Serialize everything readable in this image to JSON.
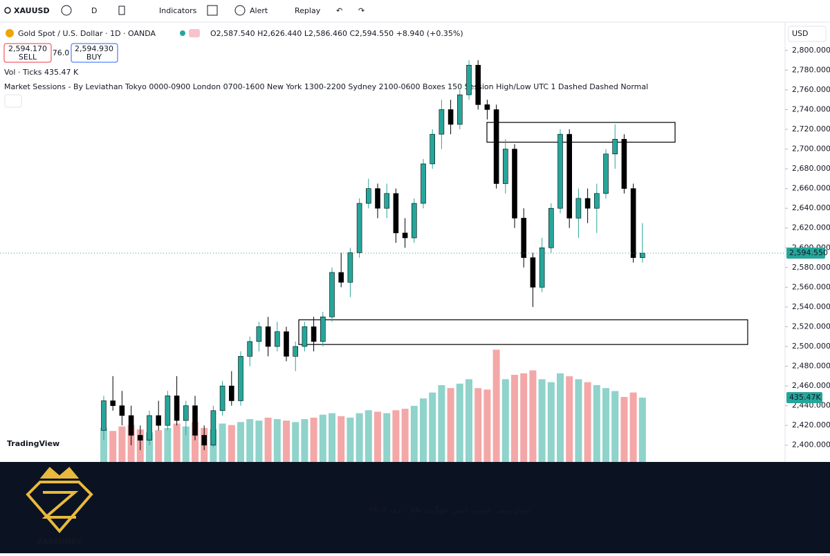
{
  "toolbar": {
    "symbol": "XAUUSD",
    "interval": "D",
    "indicators": "Indicators",
    "alert": "Alert",
    "replay": "Replay"
  },
  "legend": {
    "title": "Gold Spot / U.S. Dollar · 1D · OANDA",
    "ohlc": "O2,587.540 H2,626.440 L2,586.460 C2,594.550 +8.940 (+0.35%)",
    "sell_price": "2,594.170",
    "sell": "SELL",
    "spread": "76.0",
    "buy_price": "2,594.930",
    "buy": "BUY",
    "volume": "Vol · Ticks",
    "volume_value": "435.47 K",
    "sessions": "Market Sessions - By Leviathan Tokyo 0000-0900 London 0700-1600 New York 1300-2200 Sydney 2100-0600 Boxes 150 Session High/Low UTC 1 Dashed Dashed Normal"
  },
  "currency": "USD",
  "watermark": "TradingView",
  "chart_data": {
    "type": "candlestick",
    "ylim": [
      2383,
      2823
    ],
    "yticks": [
      {
        "value": 2400,
        "label": "2,400.000"
      },
      {
        "value": 2420,
        "label": "2,420.000"
      },
      {
        "value": 2440,
        "label": "2,440.000"
      },
      {
        "value": 2460,
        "label": "2,460.000"
      },
      {
        "value": 2480,
        "label": "2,480.000"
      },
      {
        "value": 2500,
        "label": "2,500.000"
      },
      {
        "value": 2520,
        "label": "2,520.000"
      },
      {
        "value": 2540,
        "label": "2,540.000"
      },
      {
        "value": 2560,
        "label": "2,560.000"
      },
      {
        "value": 2580,
        "label": "2,580.000"
      },
      {
        "value": 2600,
        "label": "2,600.000"
      },
      {
        "value": 2620,
        "label": "2,620.000"
      },
      {
        "value": 2640,
        "label": "2,640.000"
      },
      {
        "value": 2660,
        "label": "2,660.000"
      },
      {
        "value": 2680,
        "label": "2,680.000"
      },
      {
        "value": 2700,
        "label": "2,700.000"
      },
      {
        "value": 2720,
        "label": "2,720.000"
      },
      {
        "value": 2740,
        "label": "2,740.000"
      },
      {
        "value": 2760,
        "label": "2,760.000"
      },
      {
        "value": 2780,
        "label": "2,780.000"
      },
      {
        "value": 2800,
        "label": "2,800.000"
      }
    ],
    "last_price": {
      "value": 2594.55,
      "label": "2,594.550"
    },
    "last_volume": {
      "value": 435.47,
      "label": "435.47K"
    },
    "up_color": "#26a69a",
    "down_color": "#000000",
    "up_volume_color": "#8fd3cb",
    "down_volume_color": "#f4a7a7",
    "zones": [
      [
        2707,
        2727
      ],
      [
        2502,
        2527
      ]
    ],
    "candles": [
      [
        2415,
        2450,
        2405,
        2445
      ],
      [
        2445,
        2470,
        2435,
        2440
      ],
      [
        2440,
        2455,
        2420,
        2430
      ],
      [
        2430,
        2440,
        2400,
        2410
      ],
      [
        2410,
        2420,
        2395,
        2405
      ],
      [
        2405,
        2435,
        2400,
        2430
      ],
      [
        2430,
        2445,
        2415,
        2420
      ],
      [
        2420,
        2455,
        2415,
        2450
      ],
      [
        2450,
        2470,
        2420,
        2425
      ],
      [
        2425,
        2445,
        2410,
        2440
      ],
      [
        2440,
        2450,
        2405,
        2410
      ],
      [
        2410,
        2420,
        2395,
        2400
      ],
      [
        2400,
        2440,
        2398,
        2435
      ],
      [
        2435,
        2465,
        2430,
        2460
      ],
      [
        2460,
        2475,
        2440,
        2445
      ],
      [
        2445,
        2495,
        2440,
        2490
      ],
      [
        2490,
        2510,
        2480,
        2505
      ],
      [
        2505,
        2525,
        2495,
        2520
      ],
      [
        2520,
        2530,
        2490,
        2500
      ],
      [
        2500,
        2525,
        2495,
        2515
      ],
      [
        2515,
        2520,
        2485,
        2490
      ],
      [
        2490,
        2505,
        2475,
        2500
      ],
      [
        2500,
        2525,
        2495,
        2520
      ],
      [
        2520,
        2530,
        2495,
        2505
      ],
      [
        2505,
        2535,
        2500,
        2530
      ],
      [
        2530,
        2580,
        2525,
        2575
      ],
      [
        2575,
        2595,
        2560,
        2565
      ],
      [
        2565,
        2600,
        2550,
        2595
      ],
      [
        2595,
        2650,
        2590,
        2645
      ],
      [
        2645,
        2670,
        2640,
        2660
      ],
      [
        2660,
        2665,
        2630,
        2640
      ],
      [
        2640,
        2665,
        2630,
        2655
      ],
      [
        2655,
        2660,
        2605,
        2615
      ],
      [
        2615,
        2630,
        2600,
        2610
      ],
      [
        2610,
        2650,
        2605,
        2645
      ],
      [
        2645,
        2690,
        2640,
        2685
      ],
      [
        2685,
        2720,
        2680,
        2715
      ],
      [
        2715,
        2750,
        2700,
        2740
      ],
      [
        2740,
        2750,
        2715,
        2725
      ],
      [
        2725,
        2760,
        2720,
        2755
      ],
      [
        2755,
        2790,
        2750,
        2785
      ],
      [
        2785,
        2790,
        2740,
        2745
      ],
      [
        2745,
        2750,
        2730,
        2740
      ],
      [
        2740,
        2745,
        2660,
        2665
      ],
      [
        2665,
        2710,
        2655,
        2700
      ],
      [
        2700,
        2705,
        2620,
        2630
      ],
      [
        2630,
        2640,
        2580,
        2590
      ],
      [
        2590,
        2595,
        2540,
        2560
      ],
      [
        2560,
        2610,
        2555,
        2600
      ],
      [
        2600,
        2645,
        2595,
        2640
      ],
      [
        2640,
        2720,
        2635,
        2715
      ],
      [
        2715,
        2720,
        2620,
        2630
      ],
      [
        2630,
        2660,
        2610,
        2650
      ],
      [
        2650,
        2660,
        2625,
        2640
      ],
      [
        2640,
        2665,
        2615,
        2655
      ],
      [
        2655,
        2700,
        2650,
        2695
      ],
      [
        2695,
        2725,
        2680,
        2710
      ],
      [
        2710,
        2715,
        2655,
        2660
      ],
      [
        2660,
        2665,
        2585,
        2590
      ],
      [
        2590,
        2625,
        2585,
        2594.55
      ]
    ],
    "volumes": [
      230,
      210,
      240,
      250,
      220,
      200,
      215,
      230,
      260,
      240,
      270,
      230,
      220,
      260,
      250,
      270,
      290,
      280,
      300,
      290,
      280,
      270,
      290,
      300,
      320,
      330,
      310,
      300,
      330,
      350,
      340,
      330,
      350,
      360,
      380,
      430,
      470,
      520,
      500,
      530,
      560,
      500,
      490,
      760,
      560,
      590,
      600,
      620,
      560,
      540,
      600,
      580,
      560,
      540,
      520,
      500,
      480,
      440,
      470,
      435.47
    ]
  },
  "banner": {
    "title": "پیش بینی قیمت انس جهانی طلا – دی ۱۴۰۳",
    "brand": "ZARMINEX"
  }
}
